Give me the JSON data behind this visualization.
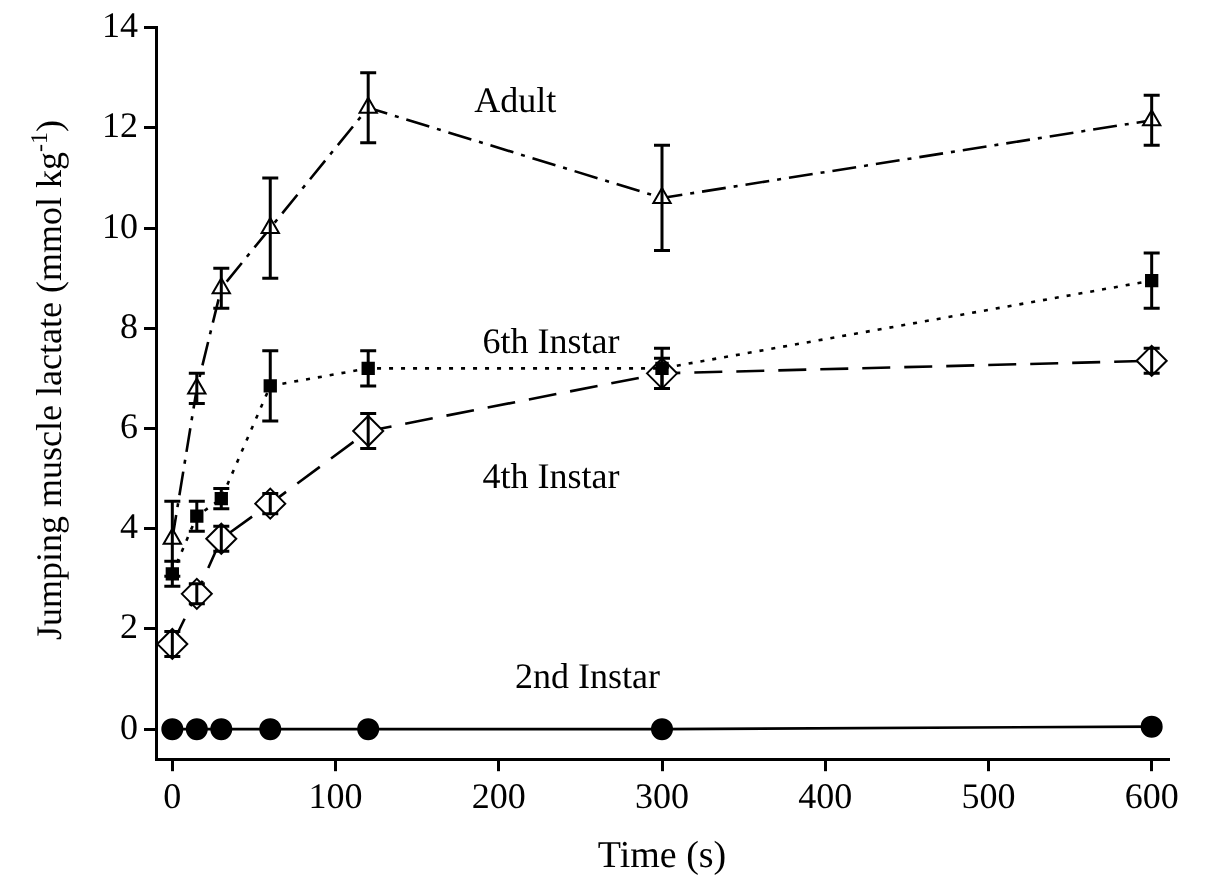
{
  "chart_data": {
    "type": "line",
    "xlabel": "Time (s)",
    "ylabel": "Jumping muscle lactate (mmol kg$^{-1}$)",
    "x": [
      0,
      15,
      30,
      60,
      120,
      300,
      600
    ],
    "xlim": [
      -10,
      610
    ],
    "xticks": [
      0,
      100,
      200,
      300,
      400,
      500,
      600
    ],
    "ylim": [
      -0.6,
      14
    ],
    "yticks": [
      0,
      2,
      4,
      6,
      8,
      10,
      12,
      14
    ],
    "grid": false,
    "legend": false,
    "series": [
      {
        "name": "Adult",
        "color": "#000000",
        "marker": "triangle",
        "line_style": "dashdot",
        "values": [
          3.8,
          6.8,
          8.8,
          10.0,
          12.4,
          10.6,
          12.15
        ],
        "errors": [
          0.75,
          0.3,
          0.4,
          1.0,
          0.7,
          1.05,
          0.5
        ]
      },
      {
        "name": "6th Instar",
        "color": "#000000",
        "marker": "square",
        "line_style": "dotted",
        "values": [
          3.1,
          4.25,
          4.6,
          6.85,
          7.2,
          7.2,
          8.95
        ],
        "errors": [
          0.25,
          0.3,
          0.2,
          0.7,
          0.35,
          0.4,
          0.55
        ]
      },
      {
        "name": "4th Instar",
        "color": "#000000",
        "marker": "diamond",
        "line_style": "dashed",
        "values": [
          1.7,
          2.7,
          3.8,
          4.5,
          5.95,
          7.1,
          7.35
        ],
        "errors": [
          0.25,
          0.2,
          0.25,
          0.2,
          0.35,
          0.3,
          0.25
        ]
      },
      {
        "name": "2nd Instar",
        "color": "#000000",
        "marker": "circle",
        "line_style": "solid",
        "values": [
          0,
          0,
          0,
          0,
          0,
          0,
          0.05
        ],
        "errors": [
          null,
          null,
          null,
          null,
          null,
          null,
          null
        ]
      }
    ]
  }
}
